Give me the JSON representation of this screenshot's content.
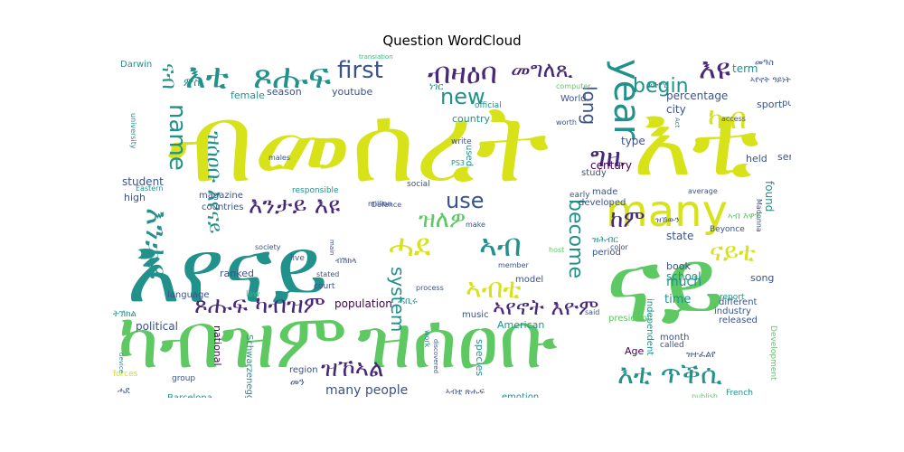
{
  "title": "Question WordCloud",
  "colors": {
    "yellow": "#d7e219",
    "lime": "#5ec962",
    "teal": "#21918c",
    "green": "#35b779",
    "blue": "#3b528b",
    "purple": "#482878",
    "dark": "#440154"
  },
  "words": [
    {
      "text": "ብመሰረት",
      "color": "yellow"
    },
    {
      "text": "እቲ",
      "color": "yellow"
    },
    {
      "text": "እየናይ",
      "color": "teal"
    },
    {
      "text": "ናይ",
      "color": "lime"
    },
    {
      "text": "ካብዝም",
      "color": "lime"
    },
    {
      "text": "ዝሰዐቡ",
      "color": "lime"
    },
    {
      "text": "many",
      "color": "yellow"
    },
    {
      "text": "year",
      "color": "teal"
    },
    {
      "text": "first",
      "color": "blue"
    },
    {
      "text": "ጾሑፍ",
      "color": "teal"
    },
    {
      "text": "እቲ",
      "color": "teal"
    },
    {
      "text": "ብዛዕባ",
      "color": "purple"
    },
    {
      "text": "መግለጺ",
      "color": "purple"
    },
    {
      "text": "name",
      "color": "teal"
    },
    {
      "text": "new",
      "color": "teal"
    },
    {
      "text": "begin",
      "color": "teal"
    },
    {
      "text": "እዩ",
      "color": "purple"
    },
    {
      "text": "ካብ",
      "color": "yellow"
    },
    {
      "text": "long",
      "color": "blue"
    },
    {
      "text": "ግዜ",
      "color": "purple"
    },
    {
      "text": "እንታይ እዩ",
      "color": "purple"
    },
    {
      "text": "ዝለዎ",
      "color": "lime"
    },
    {
      "text": "use",
      "color": "blue"
    },
    {
      "text": "become",
      "color": "teal"
    },
    {
      "text": "ከም",
      "color": "purple"
    },
    {
      "text": "ሓደ",
      "color": "yellow"
    },
    {
      "text": "ኣብ",
      "color": "teal"
    },
    {
      "text": "system",
      "color": "teal"
    },
    {
      "text": "ኣብቲ",
      "color": "yellow"
    },
    {
      "text": "ኣየኖት እዮም",
      "color": "purple"
    },
    {
      "text": "ጾሑፍ ካብዝም",
      "color": "purple"
    },
    {
      "text": "ዝኾኣል",
      "color": "purple"
    },
    {
      "text": "እቲ ጥቕሲ",
      "color": "teal"
    },
    {
      "text": "many people",
      "color": "blue"
    },
    {
      "text": "ናይቲ",
      "color": "yellow"
    },
    {
      "text": "ዝሰዐቡ እየናይ",
      "color": "teal"
    },
    {
      "text": "እንታይ",
      "color": "teal"
    },
    {
      "text": "ናብ",
      "color": "teal"
    },
    {
      "text": "time",
      "color": "teal"
    },
    {
      "text": "much",
      "color": "teal"
    },
    {
      "text": "percentage",
      "color": "blue"
    },
    {
      "text": "term",
      "color": "teal"
    },
    {
      "text": "state",
      "color": "blue"
    },
    {
      "text": "city",
      "color": "blue"
    },
    {
      "text": "type",
      "color": "blue"
    },
    {
      "text": "population",
      "color": "dark"
    },
    {
      "text": "student",
      "color": "blue"
    },
    {
      "text": "ranked",
      "color": "blue"
    },
    {
      "text": "political",
      "color": "blue"
    },
    {
      "text": "national",
      "color": "dark"
    },
    {
      "text": "century",
      "color": "dark"
    },
    {
      "text": "school",
      "color": "teal"
    },
    {
      "text": "book",
      "color": "blue"
    },
    {
      "text": "found",
      "color": "teal"
    },
    {
      "text": "held",
      "color": "blue"
    },
    {
      "text": "service",
      "color": "blue"
    },
    {
      "text": "season",
      "color": "blue"
    },
    {
      "text": "youtube",
      "color": "blue"
    },
    {
      "text": "female",
      "color": "teal"
    },
    {
      "text": "Darwin",
      "color": "teal"
    },
    {
      "text": "country",
      "color": "teal"
    },
    {
      "text": "music",
      "color": "blue"
    },
    {
      "text": "Age",
      "color": "dark"
    },
    {
      "text": "song",
      "color": "blue"
    },
    {
      "text": "high",
      "color": "blue"
    },
    {
      "text": "American",
      "color": "teal"
    },
    {
      "text": "species",
      "color": "teal"
    },
    {
      "text": "sport",
      "color": "blue"
    },
    {
      "text": "public",
      "color": "blue"
    },
    {
      "text": "month",
      "color": "blue"
    },
    {
      "text": "released",
      "color": "blue"
    },
    {
      "text": "industry",
      "color": "blue"
    },
    {
      "text": "emotion",
      "color": "teal"
    },
    {
      "text": "Barcelona",
      "color": "teal"
    },
    {
      "text": "Schwarzenegger",
      "color": "teal"
    },
    {
      "text": "region",
      "color": "blue"
    },
    {
      "text": "language",
      "color": "blue"
    },
    {
      "text": "countries",
      "color": "blue"
    },
    {
      "text": "magazine",
      "color": "blue"
    },
    {
      "text": "used",
      "color": "teal"
    },
    {
      "text": "official",
      "color": "teal"
    },
    {
      "text": "World",
      "color": "blue"
    },
    {
      "text": "study",
      "color": "blue"
    },
    {
      "text": "made",
      "color": "blue"
    },
    {
      "text": "developed",
      "color": "blue"
    },
    {
      "text": "early",
      "color": "blue"
    },
    {
      "text": "called",
      "color": "blue"
    },
    {
      "text": "independent",
      "color": "teal"
    },
    {
      "text": "president",
      "color": "lime"
    },
    {
      "text": "model",
      "color": "blue"
    },
    {
      "text": "period",
      "color": "blue"
    },
    {
      "text": "different",
      "color": "blue"
    },
    {
      "text": "Beyonce",
      "color": "blue"
    },
    {
      "text": "report",
      "color": "teal"
    },
    {
      "text": "French",
      "color": "teal"
    },
    {
      "text": "Development",
      "color": "lime"
    },
    {
      "text": "forces",
      "color": "yellow"
    },
    {
      "text": "group",
      "color": "blue"
    },
    {
      "text": "court",
      "color": "blue"
    },
    {
      "text": "live",
      "color": "blue"
    },
    {
      "text": "law",
      "color": "green"
    },
    {
      "text": "stated",
      "color": "blue"
    },
    {
      "text": "society",
      "color": "blue"
    },
    {
      "text": "million",
      "color": "blue"
    },
    {
      "text": "responsible",
      "color": "teal"
    },
    {
      "text": "social",
      "color": "blue"
    },
    {
      "text": "process",
      "color": "blue"
    },
    {
      "text": "member",
      "color": "blue"
    },
    {
      "text": "color",
      "color": "blue"
    },
    {
      "text": "write",
      "color": "blue"
    },
    {
      "text": "worth",
      "color": "blue"
    },
    {
      "text": "PS3",
      "color": "teal"
    },
    {
      "text": "Eastern",
      "color": "teal"
    },
    {
      "text": "males",
      "color": "blue"
    },
    {
      "text": "university",
      "color": "teal"
    },
    {
      "text": "translation",
      "color": "green"
    },
    {
      "text": "computer",
      "color": "lime"
    },
    {
      "text": "access",
      "color": "blue"
    },
    {
      "text": "average",
      "color": "blue"
    },
    {
      "text": "Madonna",
      "color": "blue"
    },
    {
      "text": "make",
      "color": "blue"
    },
    {
      "text": "Defence",
      "color": "blue"
    },
    {
      "text": "host",
      "color": "lime"
    },
    {
      "text": "said",
      "color": "blue"
    },
    {
      "text": "publish",
      "color": "lime"
    },
    {
      "text": "discovered",
      "color": "blue"
    },
    {
      "text": "work",
      "color": "teal"
    },
    {
      "text": "main",
      "color": "blue"
    },
    {
      "text": "device",
      "color": "teal"
    },
    {
      "text": "Act",
      "color": "teal"
    },
    {
      "text": "ምስ",
      "color": "teal"
    },
    {
      "text": "ነገር",
      "color": "teal"
    },
    {
      "text": "ኣየኖት ዓይነት",
      "color": "blue"
    },
    {
      "text": "መዓስ",
      "color": "blue"
    },
    {
      "text": "ቅድሚ",
      "color": "teal"
    },
    {
      "text": "ኣብ እዋን",
      "color": "lime"
    },
    {
      "text": "ሓቢሩ",
      "color": "teal"
    },
    {
      "text": "ዝሕብር",
      "color": "teal"
    },
    {
      "text": "ትኽክል",
      "color": "teal"
    },
    {
      "text": "መን",
      "color": "blue"
    },
    {
      "text": "ብሽክላ",
      "color": "blue"
    },
    {
      "text": "ዝተፈልየ",
      "color": "blue"
    },
    {
      "text": "ኣብቲ ጽሑፍ",
      "color": "blue"
    },
    {
      "text": "ሓደ",
      "color": "blue"
    },
    {
      "text": "ዝኸውን",
      "color": "blue"
    }
  ]
}
